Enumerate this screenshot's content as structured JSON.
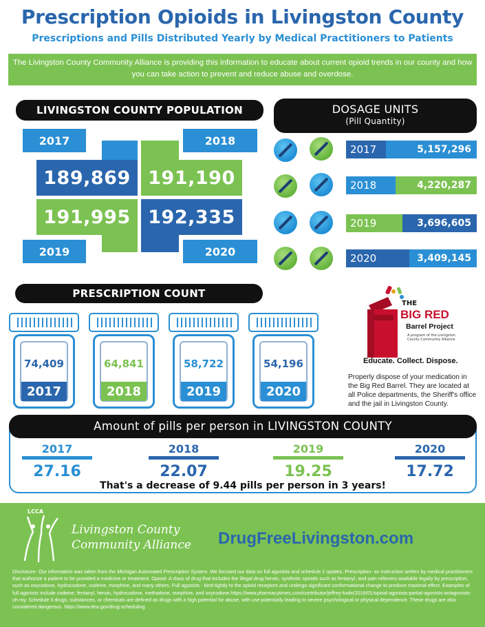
{
  "header": {
    "title": "Prescription Opioids in Livingston County",
    "subtitle": "Prescriptions and Pills Distributed Yearly by Medical Practitioners to Patients",
    "intro": "The Livingston County Community Alliance is providing this information to educate about current opioid trends in our county and how you can take action to prevent and reduce abuse and overdose."
  },
  "population": {
    "heading": "LIVINGSTON COUNTY POPULATION",
    "items": [
      {
        "year": "2017",
        "value": "189,869"
      },
      {
        "year": "2018",
        "value": "191,190"
      },
      {
        "year": "2019",
        "value": "191,995"
      },
      {
        "year": "2020",
        "value": "192,335"
      }
    ]
  },
  "dosage": {
    "heading": "DOSAGE UNITS",
    "subheading": "(Pill Quantity)",
    "items": [
      {
        "year": "2017",
        "value": "5,157,296"
      },
      {
        "year": "2018",
        "value": "4,220,287"
      },
      {
        "year": "2019",
        "value": "3,696,605"
      },
      {
        "year": "2020",
        "value": "3,409,145"
      }
    ]
  },
  "prescriptions": {
    "heading": "PRESCRIPTION COUNT",
    "items": [
      {
        "year": "2017",
        "value": "74,409"
      },
      {
        "year": "2018",
        "value": "64,841"
      },
      {
        "year": "2019",
        "value": "58,722"
      },
      {
        "year": "2020",
        "value": "54,196"
      }
    ]
  },
  "barrel": {
    "the": "THE",
    "big_red": "BIG RED",
    "project": "Barrel Project",
    "program": "A program of the Livingston County Community Alliance",
    "tagline": "Educate. Collect. Dispose.",
    "description": "Properly dispose of your medication in the Big Red Barrel. They are located at all Police departments, the Sheriff's office and the jail in Livingston County."
  },
  "pills_per_person": {
    "heading": "Amount of pills per person in LIVINGSTON COUNTY",
    "items": [
      {
        "year": "2017",
        "value": "27.16"
      },
      {
        "year": "2018",
        "value": "22.07"
      },
      {
        "year": "2019",
        "value": "19.25"
      },
      {
        "year": "2020",
        "value": "17.72"
      }
    ],
    "summary": "That's a decrease of 9.44 pills per person in 3 years!"
  },
  "footer": {
    "logo_initials": "LCCA",
    "org_line1": "Livingston County",
    "org_line2": "Community Alliance",
    "website": "DrugFreeLivingston.com",
    "disclosure": "Disclosure- Our information was taken from the Michigan Automated Prescription System. We focused our data on full agonists and schedule 2 opiates. Prescription- an instruction written by medical practitioners that authorize a patient to be provided a medicine or treatment. Opioid- A class of drug that includes the illegal drug heroin, synthetic opioids such as fentanyl, and pain relievers available legally by prescription, such as oxycodone, hydrocodone, codeine, morphine, and many others. Full agonists - bind tightly to the opioid receptors and undergo significant conformational change to produce maximal effect. Examples of full agonists include codeine, fentanyl, heroin, hydrocodone, methadone, morphine, and oxycodone.https://www.pharmacytimes.com/contributor/jeffrey-fudin/2018/01/opioid-agonists-partial-agonists-antagonists-oh-my. Schedule II drugs, substances, or chemicals are defined as drugs with a high potential for abuse, with use potentially leading to severe psychological or physical dependence. These drugs are also considered dangerous. https://www.dea.gov/drug-scheduling"
  },
  "colors": {
    "dark_blue": "#2a66ad",
    "light_blue": "#2a8fd4",
    "green": "#7cc252",
    "red": "#c8102e"
  }
}
